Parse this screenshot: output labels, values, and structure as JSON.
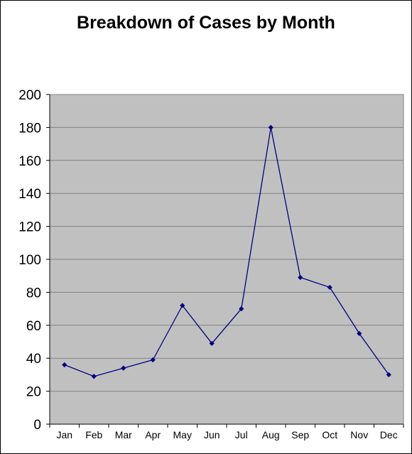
{
  "chart_data": {
    "type": "line",
    "title": "Breakdown of Cases by Month",
    "xlabel": "",
    "ylabel": "",
    "categories": [
      "Jan",
      "Feb",
      "Mar",
      "Apr",
      "May",
      "Jun",
      "Jul",
      "Aug",
      "Sep",
      "Oct",
      "Nov",
      "Dec"
    ],
    "series": [
      {
        "values": [
          36,
          29,
          34,
          39,
          72,
          49,
          70,
          180,
          89,
          83,
          55,
          30
        ]
      }
    ],
    "ylim": [
      0,
      200
    ],
    "yticks": [
      "0",
      "20",
      "40",
      "60",
      "80",
      "100",
      "120",
      "140",
      "160",
      "180",
      "200"
    ],
    "grid": true,
    "legend": "none",
    "colors": {
      "plot_background": "#c0c0c0",
      "line": "#000080",
      "marker": "#000080",
      "gridline": "#808080"
    }
  }
}
